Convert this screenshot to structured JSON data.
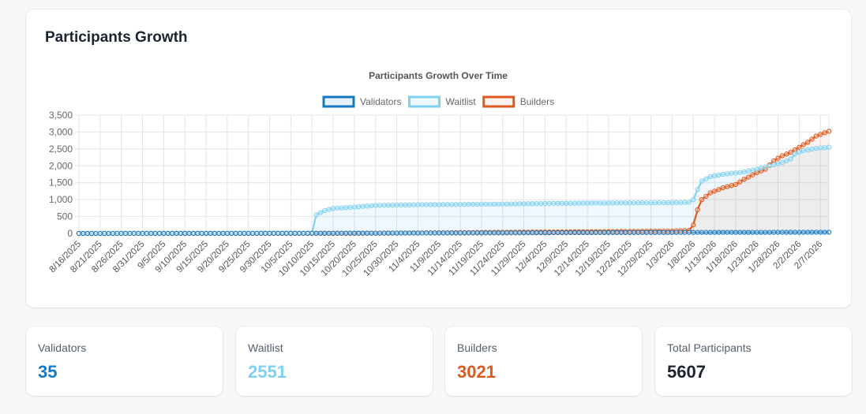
{
  "page": {
    "title": "Participants Growth"
  },
  "chart_data": {
    "type": "line",
    "title": "Participants Growth Over Time",
    "legend_position": "top",
    "grid": true,
    "fill": true,
    "ylim": [
      0,
      3500
    ],
    "y_ticks": [
      "0",
      "500",
      "1,000",
      "1,500",
      "2,000",
      "2,500",
      "3,000",
      "3,500"
    ],
    "x_range": [
      "8/16/2025",
      "2/9/2026"
    ],
    "x_tick_labels": [
      "8/16/2025",
      "8/21/2025",
      "8/26/2025",
      "8/31/2025",
      "9/5/2025",
      "9/10/2025",
      "9/15/2025",
      "9/20/2025",
      "9/25/2025",
      "9/30/2025",
      "10/5/2025",
      "10/10/2025",
      "10/15/2025",
      "10/20/2025",
      "10/25/2025",
      "10/30/2025",
      "11/4/2025",
      "11/9/2025",
      "11/14/2025",
      "11/19/2025",
      "11/24/2025",
      "11/29/2025",
      "12/4/2025",
      "12/9/2025",
      "12/14/2025",
      "12/19/2025",
      "12/24/2025",
      "12/29/2025",
      "1/3/2026",
      "1/8/2026",
      "1/13/2026",
      "1/18/2026",
      "1/23/2026",
      "1/28/2026",
      "2/2/2026",
      "2/7/2026"
    ],
    "series": [
      {
        "name": "Validators",
        "color": "#1579c2",
        "fill_color": "rgba(21,121,194,0.10)",
        "points": [
          [
            "8/16/2025",
            0
          ],
          [
            "10/10/2025",
            5
          ],
          [
            "12/1/2025",
            20
          ],
          [
            "1/5/2026",
            30
          ],
          [
            "2/9/2026",
            35
          ]
        ]
      },
      {
        "name": "Waitlist",
        "color": "#7fd0f1",
        "fill_color": "rgba(127,208,241,0.12)",
        "points": [
          [
            "8/16/2025",
            0
          ],
          [
            "10/10/2025",
            10
          ],
          [
            "10/11/2025",
            550
          ],
          [
            "10/13/2025",
            680
          ],
          [
            "10/15/2025",
            740
          ],
          [
            "10/20/2025",
            780
          ],
          [
            "10/25/2025",
            830
          ],
          [
            "11/4/2025",
            850
          ],
          [
            "11/24/2025",
            870
          ],
          [
            "12/14/2025",
            900
          ],
          [
            "1/3/2026",
            910
          ],
          [
            "1/7/2026",
            920
          ],
          [
            "1/8/2026",
            1000
          ],
          [
            "1/9/2026",
            1300
          ],
          [
            "1/10/2026",
            1550
          ],
          [
            "1/12/2026",
            1680
          ],
          [
            "1/15/2026",
            1750
          ],
          [
            "1/20/2026",
            1820
          ],
          [
            "1/23/2026",
            1900
          ],
          [
            "1/26/2026",
            2000
          ],
          [
            "1/29/2026",
            2100
          ],
          [
            "1/31/2026",
            2200
          ],
          [
            "2/1/2026",
            2350
          ],
          [
            "2/3/2026",
            2450
          ],
          [
            "2/6/2026",
            2520
          ],
          [
            "2/9/2026",
            2551
          ]
        ]
      },
      {
        "name": "Builders",
        "color": "#e0591c",
        "fill_color": "rgba(224,89,28,0.08)",
        "points": [
          [
            "8/16/2025",
            0
          ],
          [
            "10/20/2025",
            0
          ],
          [
            "11/20/2025",
            30
          ],
          [
            "12/14/2025",
            50
          ],
          [
            "1/3/2026",
            70
          ],
          [
            "1/7/2026",
            90
          ],
          [
            "1/8/2026",
            250
          ],
          [
            "1/9/2026",
            700
          ],
          [
            "1/10/2026",
            1000
          ],
          [
            "1/12/2026",
            1200
          ],
          [
            "1/15/2026",
            1350
          ],
          [
            "1/18/2026",
            1450
          ],
          [
            "1/20/2026",
            1600
          ],
          [
            "1/23/2026",
            1800
          ],
          [
            "1/25/2026",
            1900
          ],
          [
            "1/27/2026",
            2150
          ],
          [
            "1/29/2026",
            2300
          ],
          [
            "1/31/2026",
            2400
          ],
          [
            "2/2/2026",
            2550
          ],
          [
            "2/4/2026",
            2700
          ],
          [
            "2/6/2026",
            2880
          ],
          [
            "2/8/2026",
            2980
          ],
          [
            "2/9/2026",
            3021
          ]
        ]
      }
    ]
  },
  "stats": [
    {
      "label": "Validators",
      "value": "35",
      "color": "#1579c2"
    },
    {
      "label": "Waitlist",
      "value": "2551",
      "color": "#7fd0f1"
    },
    {
      "label": "Builders",
      "value": "3021",
      "color": "#e0591c"
    },
    {
      "label": "Total Participants",
      "value": "5607",
      "color": "#1b2431"
    }
  ]
}
